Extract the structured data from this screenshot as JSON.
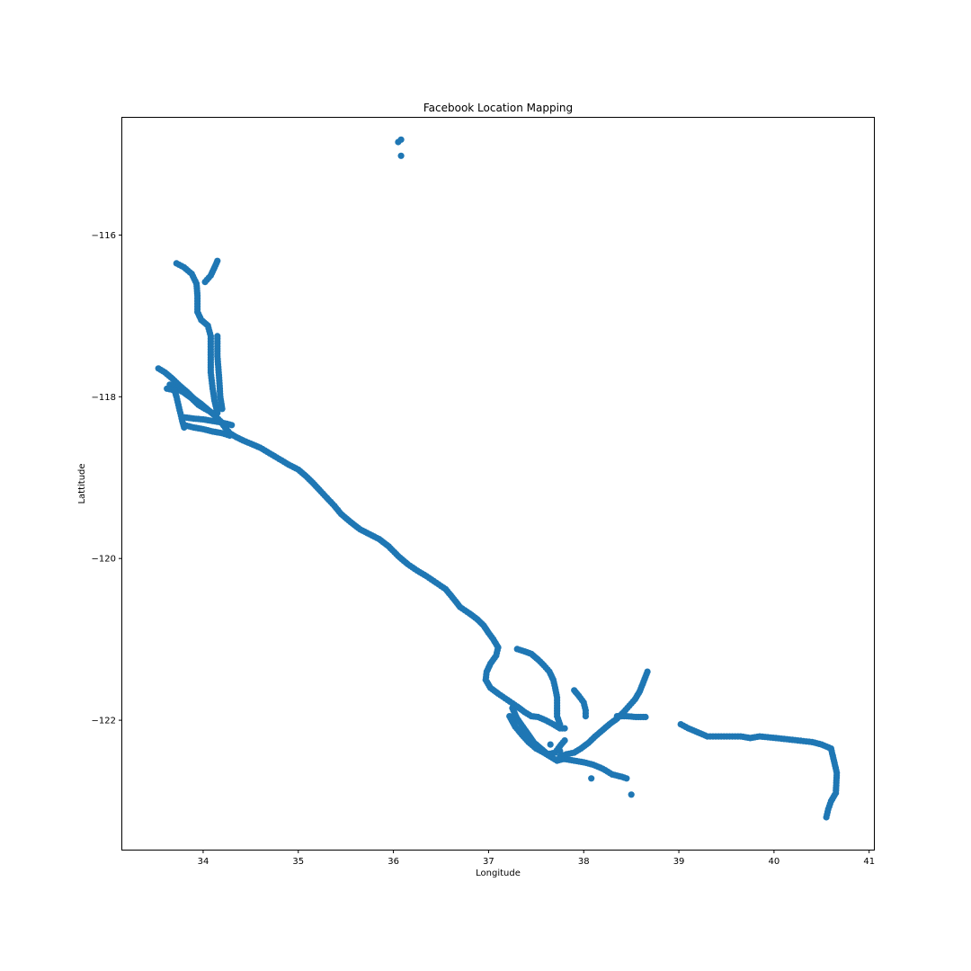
{
  "chart_data": {
    "type": "scatter",
    "title": "Facebook Location Mapping",
    "xlabel": "Longitude",
    "ylabel": "Lattitude",
    "xlim": [
      33.15,
      41.05
    ],
    "ylim": [
      -123.6,
      -114.55
    ],
    "xticks": [
      34,
      35,
      36,
      37,
      38,
      39,
      40,
      41
    ],
    "yticks": [
      -116,
      -118,
      -120,
      -122
    ],
    "xtick_labels": [
      "34",
      "35",
      "36",
      "37",
      "38",
      "39",
      "40",
      "41"
    ],
    "ytick_labels": [
      "−116",
      "−118",
      "−120",
      "−122"
    ],
    "grid": false,
    "marker_color": "#1f77b4",
    "series": [
      {
        "tracks": [
          [
            [
              33.53,
              -117.65
            ],
            [
              33.6,
              -117.7
            ],
            [
              33.68,
              -117.78
            ],
            [
              33.76,
              -117.87
            ],
            [
              33.83,
              -117.94
            ],
            [
              33.9,
              -118.02
            ],
            [
              33.98,
              -118.09
            ],
            [
              34.05,
              -118.16
            ],
            [
              34.12,
              -118.23
            ],
            [
              34.18,
              -118.3
            ],
            [
              34.23,
              -118.38
            ],
            [
              34.28,
              -118.45
            ],
            [
              34.35,
              -118.5
            ],
            [
              34.42,
              -118.54
            ],
            [
              34.5,
              -118.58
            ],
            [
              34.6,
              -118.63
            ],
            [
              34.7,
              -118.7
            ],
            [
              34.8,
              -118.77
            ],
            [
              34.9,
              -118.84
            ],
            [
              35.0,
              -118.9
            ],
            [
              35.08,
              -118.98
            ],
            [
              35.15,
              -119.06
            ],
            [
              35.22,
              -119.15
            ],
            [
              35.3,
              -119.25
            ],
            [
              35.38,
              -119.35
            ],
            [
              35.45,
              -119.45
            ],
            [
              35.55,
              -119.55
            ],
            [
              35.65,
              -119.64
            ],
            [
              35.75,
              -119.7
            ],
            [
              35.85,
              -119.76
            ],
            [
              35.95,
              -119.85
            ],
            [
              36.05,
              -119.97
            ],
            [
              36.15,
              -120.07
            ],
            [
              36.25,
              -120.15
            ],
            [
              36.35,
              -120.22
            ],
            [
              36.45,
              -120.3
            ],
            [
              36.55,
              -120.38
            ],
            [
              36.62,
              -120.48
            ],
            [
              36.7,
              -120.6
            ],
            [
              36.8,
              -120.68
            ],
            [
              36.88,
              -120.75
            ],
            [
              36.95,
              -120.83
            ],
            [
              37.0,
              -120.92
            ],
            [
              37.05,
              -121.0
            ],
            [
              37.1,
              -121.1
            ]
          ],
          [
            [
              37.1,
              -121.1
            ],
            [
              37.08,
              -121.2
            ],
            [
              37.02,
              -121.3
            ],
            [
              36.98,
              -121.4
            ],
            [
              36.97,
              -121.5
            ],
            [
              37.02,
              -121.6
            ],
            [
              37.1,
              -121.67
            ],
            [
              37.2,
              -121.75
            ],
            [
              37.3,
              -121.83
            ],
            [
              37.38,
              -121.9
            ],
            [
              37.45,
              -121.95
            ],
            [
              37.52,
              -121.96
            ],
            [
              37.6,
              -122.0
            ],
            [
              37.68,
              -122.05
            ],
            [
              37.75,
              -122.1
            ],
            [
              37.8,
              -122.1
            ]
          ],
          [
            [
              37.22,
              -121.95
            ],
            [
              37.28,
              -122.08
            ],
            [
              37.35,
              -122.18
            ],
            [
              37.42,
              -122.27
            ],
            [
              37.5,
              -122.35
            ],
            [
              37.58,
              -122.4
            ],
            [
              37.65,
              -122.45
            ],
            [
              37.72,
              -122.5
            ],
            [
              37.78,
              -122.48
            ]
          ],
          [
            [
              37.25,
              -121.85
            ],
            [
              37.3,
              -121.98
            ],
            [
              37.36,
              -122.08
            ],
            [
              37.42,
              -122.18
            ],
            [
              37.48,
              -122.28
            ],
            [
              37.55,
              -122.35
            ],
            [
              37.62,
              -122.42
            ],
            [
              37.7,
              -122.4
            ],
            [
              37.75,
              -122.32
            ],
            [
              37.8,
              -122.25
            ]
          ],
          [
            [
              37.3,
              -121.12
            ],
            [
              37.38,
              -121.15
            ],
            [
              37.45,
              -121.18
            ],
            [
              37.52,
              -121.25
            ],
            [
              37.58,
              -121.32
            ],
            [
              37.64,
              -121.4
            ],
            [
              37.68,
              -121.5
            ],
            [
              37.7,
              -121.6
            ],
            [
              37.72,
              -121.72
            ],
            [
              37.72,
              -121.82
            ],
            [
              37.72,
              -121.95
            ],
            [
              37.75,
              -122.05
            ]
          ],
          [
            [
              37.75,
              -122.45
            ],
            [
              37.82,
              -122.42
            ],
            [
              37.9,
              -122.4
            ],
            [
              37.97,
              -122.35
            ],
            [
              38.05,
              -122.28
            ],
            [
              38.12,
              -122.2
            ],
            [
              38.2,
              -122.12
            ],
            [
              38.27,
              -122.05
            ],
            [
              38.35,
              -121.98
            ],
            [
              38.42,
              -121.9
            ],
            [
              38.48,
              -121.82
            ],
            [
              38.54,
              -121.74
            ],
            [
              38.59,
              -121.64
            ],
            [
              38.62,
              -121.55
            ],
            [
              38.65,
              -121.46
            ],
            [
              38.67,
              -121.4
            ]
          ],
          [
            [
              37.8,
              -122.48
            ],
            [
              37.9,
              -122.5
            ],
            [
              38.0,
              -122.52
            ],
            [
              38.1,
              -122.55
            ],
            [
              38.2,
              -122.6
            ],
            [
              38.3,
              -122.67
            ],
            [
              38.4,
              -122.7
            ],
            [
              38.45,
              -122.72
            ]
          ],
          [
            [
              37.9,
              -121.63
            ],
            [
              37.95,
              -121.7
            ],
            [
              38.0,
              -121.78
            ],
            [
              38.02,
              -121.88
            ],
            [
              38.02,
              -121.95
            ]
          ],
          [
            [
              38.35,
              -121.95
            ],
            [
              38.45,
              -121.95
            ],
            [
              38.55,
              -121.96
            ],
            [
              38.65,
              -121.96
            ]
          ],
          [
            [
              39.02,
              -122.05
            ],
            [
              39.1,
              -122.1
            ],
            [
              39.3,
              -122.2
            ],
            [
              39.65,
              -122.2
            ],
            [
              39.75,
              -122.22
            ],
            [
              39.85,
              -122.2
            ],
            [
              40.02,
              -122.22
            ],
            [
              40.25,
              -122.25
            ],
            [
              40.4,
              -122.27
            ],
            [
              40.5,
              -122.3
            ],
            [
              40.6,
              -122.35
            ],
            [
              40.63,
              -122.5
            ],
            [
              40.66,
              -122.65
            ],
            [
              40.65,
              -122.9
            ],
            [
              40.6,
              -123.0
            ],
            [
              40.57,
              -123.1
            ],
            [
              40.55,
              -123.2
            ]
          ],
          [
            [
              33.72,
              -116.35
            ],
            [
              33.8,
              -116.4
            ],
            [
              33.88,
              -116.48
            ],
            [
              33.93,
              -116.6
            ],
            [
              33.94,
              -116.75
            ],
            [
              33.94,
              -116.95
            ],
            [
              33.98,
              -117.05
            ],
            [
              34.05,
              -117.12
            ],
            [
              34.08,
              -117.25
            ],
            [
              34.08,
              -117.45
            ],
            [
              34.08,
              -117.7
            ],
            [
              34.1,
              -117.9
            ],
            [
              34.12,
              -118.05
            ],
            [
              34.15,
              -118.2
            ]
          ],
          [
            [
              34.02,
              -116.58
            ],
            [
              34.08,
              -116.5
            ],
            [
              34.12,
              -116.4
            ],
            [
              34.15,
              -116.32
            ]
          ],
          [
            [
              34.15,
              -117.25
            ],
            [
              34.15,
              -117.5
            ],
            [
              34.17,
              -117.8
            ],
            [
              34.18,
              -118.0
            ],
            [
              34.2,
              -118.15
            ]
          ],
          [
            [
              33.65,
              -117.85
            ],
            [
              33.72,
              -117.9
            ],
            [
              33.8,
              -117.95
            ],
            [
              33.88,
              -118.02
            ],
            [
              33.95,
              -118.1
            ],
            [
              34.02,
              -118.15
            ],
            [
              34.1,
              -118.2
            ]
          ],
          [
            [
              33.78,
              -118.25
            ],
            [
              33.9,
              -118.27
            ],
            [
              34.0,
              -118.28
            ],
            [
              34.1,
              -118.3
            ],
            [
              34.2,
              -118.32
            ],
            [
              34.3,
              -118.35
            ]
          ],
          [
            [
              33.8,
              -118.35
            ],
            [
              33.9,
              -118.38
            ],
            [
              34.0,
              -118.4
            ],
            [
              34.1,
              -118.43
            ],
            [
              34.2,
              -118.45
            ],
            [
              34.28,
              -118.48
            ]
          ],
          [
            [
              33.62,
              -117.9
            ],
            [
              33.7,
              -117.92
            ],
            [
              33.72,
              -118.0
            ],
            [
              33.74,
              -118.1
            ],
            [
              33.76,
              -118.2
            ],
            [
              33.78,
              -118.3
            ],
            [
              33.8,
              -118.38
            ]
          ]
        ],
        "points": [
          [
            36.05,
            -114.85
          ],
          [
            36.08,
            -114.82
          ],
          [
            36.08,
            -115.02
          ],
          [
            38.08,
            -122.72
          ],
          [
            38.5,
            -122.92
          ],
          [
            37.75,
            -122.38
          ],
          [
            37.65,
            -122.3
          ]
        ]
      }
    ]
  }
}
